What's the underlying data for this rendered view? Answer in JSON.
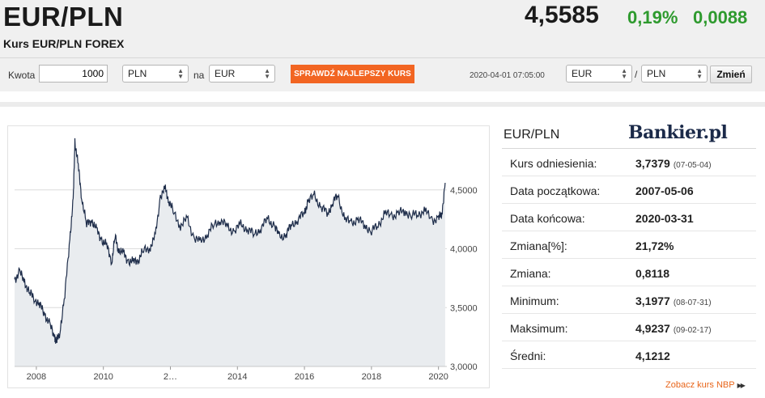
{
  "header": {
    "title": "EUR/PLN",
    "subtitle": "Kurs EUR/PLN FOREX",
    "rate": "4,5585",
    "change_percent": "0,19%",
    "change_abs": "0,0088"
  },
  "converter": {
    "amount_label": "Kwota",
    "amount_value": "1000",
    "from_currency": "PLN",
    "to_label": "na",
    "to_currency": "EUR",
    "check_button": "SPRAWDŹ NAJLEPSZY KURS",
    "timestamp": "2020-04-01 07:05:00",
    "pair_from": "EUR",
    "pair_sep": "/",
    "pair_to": "PLN",
    "change_button": "Zmień"
  },
  "stats": {
    "title": "EUR/PLN",
    "logo": "Bankier.pl",
    "rows": [
      {
        "label": "Kurs odniesienia:",
        "value": "3,7379",
        "date": "(07-05-04)"
      },
      {
        "label": "Data początkowa:",
        "value": "2007-05-06",
        "date": ""
      },
      {
        "label": "Data końcowa:",
        "value": "2020-03-31",
        "date": ""
      },
      {
        "label": "Zmiana[%]:",
        "value": "21,72%",
        "date": ""
      },
      {
        "label": "Zmiana:",
        "value": "0,8118",
        "date": ""
      },
      {
        "label": "Minimum:",
        "value": "3,1977",
        "date": "(08-07-31)"
      },
      {
        "label": "Maksimum:",
        "value": "4,9237",
        "date": "(09-02-17)"
      },
      {
        "label": "Średni:",
        "value": "4,1212",
        "date": ""
      }
    ],
    "nbp_link": "Zobacz kurs NBP"
  },
  "chart_data": {
    "type": "line",
    "series": [
      {
        "name": "",
        "x": [
          2007.35,
          2007.5,
          2007.65,
          2007.8,
          2007.95,
          2008.1,
          2008.25,
          2008.4,
          2008.55,
          2008.6,
          2008.7,
          2008.85,
          2009.0,
          2009.1,
          2009.15,
          2009.25,
          2009.35,
          2009.5,
          2009.65,
          2009.8,
          2009.95,
          2010.1,
          2010.25,
          2010.35,
          2010.45,
          2010.6,
          2010.75,
          2010.9,
          2011.05,
          2011.2,
          2011.4,
          2011.55,
          2011.7,
          2011.85,
          2011.95,
          2012.1,
          2012.3,
          2012.5,
          2012.7,
          2012.9,
          2013.1,
          2013.3,
          2013.5,
          2013.7,
          2013.9,
          2014.1,
          2014.3,
          2014.5,
          2014.7,
          2014.9,
          2015.1,
          2015.25,
          2015.45,
          2015.6,
          2015.8,
          2016.0,
          2016.1,
          2016.3,
          2016.5,
          2016.7,
          2016.85,
          2017.0,
          2017.2,
          2017.4,
          2017.6,
          2017.8,
          2018.0,
          2018.2,
          2018.4,
          2018.6,
          2018.8,
          2019.0,
          2019.2,
          2019.4,
          2019.6,
          2019.8,
          2020.0,
          2020.1,
          2020.2
        ],
        "y": [
          3.74,
          3.8,
          3.72,
          3.62,
          3.58,
          3.52,
          3.45,
          3.35,
          3.25,
          3.2,
          3.3,
          3.6,
          4.1,
          4.4,
          4.92,
          4.7,
          4.45,
          4.2,
          4.25,
          4.15,
          4.08,
          4.02,
          3.9,
          4.1,
          4.0,
          3.95,
          3.9,
          3.88,
          3.92,
          3.98,
          4.02,
          4.1,
          4.45,
          4.5,
          4.42,
          4.3,
          4.2,
          4.25,
          4.1,
          4.05,
          4.13,
          4.2,
          4.25,
          4.18,
          4.15,
          4.2,
          4.17,
          4.12,
          4.18,
          4.25,
          4.2,
          4.1,
          4.12,
          4.2,
          4.25,
          4.3,
          4.4,
          4.45,
          4.35,
          4.3,
          4.4,
          4.45,
          4.25,
          4.22,
          4.25,
          4.2,
          4.15,
          4.2,
          4.3,
          4.28,
          4.3,
          4.32,
          4.28,
          4.3,
          4.32,
          4.25,
          4.25,
          4.3,
          4.56
        ]
      }
    ],
    "xticks": [
      "2008",
      "2010",
      "2…",
      "2014",
      "2016",
      "2018",
      "2020"
    ],
    "yticks": [
      "3,0000",
      "3,5000",
      "4,0000",
      "4,5000"
    ],
    "xlim": [
      2007.35,
      2020.25
    ],
    "ylim": [
      3.0,
      5.0
    ],
    "grid": "horizontal",
    "line_color": "#1e2d4a",
    "fill_color": "#e9ecef"
  }
}
